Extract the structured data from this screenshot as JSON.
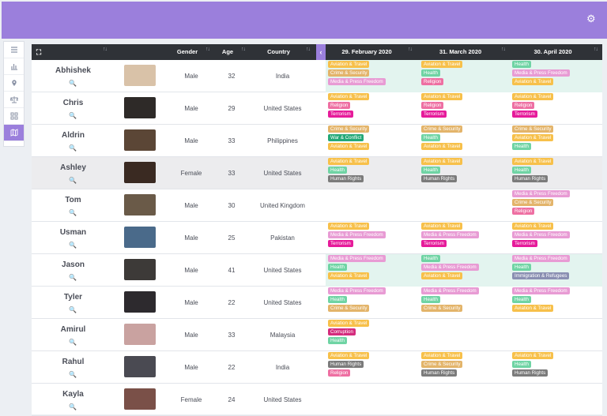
{
  "header": {
    "settings_icon": "gear-icon"
  },
  "sidebar": {
    "items": [
      {
        "icon": "menu-icon"
      },
      {
        "icon": "bar-chart-icon"
      },
      {
        "icon": "map-pin-icon"
      },
      {
        "icon": "scale-icon"
      },
      {
        "icon": "grid-icon"
      },
      {
        "icon": "map-icon",
        "active": true
      }
    ]
  },
  "table": {
    "columns": {
      "gender": "Gender",
      "age": "Age",
      "country": "Country"
    },
    "dates": [
      "29. February 2020",
      "31. March 2020",
      "30. April 2020"
    ],
    "rows": [
      {
        "name": "Abhishek",
        "gender": "Male",
        "age": "32",
        "country": "India",
        "tags": [
          [
            "Aviation & Travel",
            "Crime & Security",
            "Media & Press Freedom"
          ],
          [
            "Aviation & Travel",
            "Health",
            "Religion"
          ],
          [
            "Health",
            "Media & Press Freedom",
            "Aviation & Travel"
          ]
        ]
      },
      {
        "name": "Chris",
        "gender": "Male",
        "age": "29",
        "country": "United States",
        "tags": [
          [
            "Aviation & Travel",
            "Religion",
            "Terrorism"
          ],
          [
            "Aviation & Travel",
            "Religion",
            "Terrorism"
          ],
          [
            "Aviation & Travel",
            "Religion",
            "Terrorism"
          ]
        ]
      },
      {
        "name": "Aldrin",
        "gender": "Male",
        "age": "33",
        "country": "Philippines",
        "tags": [
          [
            "Crime & Security",
            "War & Conflict",
            "Aviation & Travel"
          ],
          [
            "Crime & Security",
            "Health",
            "Aviation & Travel"
          ],
          [
            "Crime & Security",
            "Aviation & Travel",
            "Health"
          ]
        ]
      },
      {
        "name": "Ashley",
        "gender": "Female",
        "age": "33",
        "country": "United States",
        "tags": [
          [
            "Aviation & Travel",
            "Health",
            "Human Rights"
          ],
          [
            "Aviation & Travel",
            "Health",
            "Human Rights"
          ],
          [
            "Aviation & Travel",
            "Health",
            "Human Rights"
          ]
        ]
      },
      {
        "name": "Tom",
        "gender": "Male",
        "age": "30",
        "country": "United Kingdom",
        "tags": [
          [],
          [],
          [
            "Media & Press Freedom",
            "Crime & Security",
            "Religion"
          ]
        ]
      },
      {
        "name": "Usman",
        "gender": "Male",
        "age": "25",
        "country": "Pakistan",
        "tags": [
          [
            "Aviation & Travel",
            "Media & Press Freedom",
            "Terrorism"
          ],
          [
            "Aviation & Travel",
            "Media & Press Freedom",
            "Terrorism"
          ],
          [
            "Aviation & Travel",
            "Media & Press Freedom",
            "Terrorism"
          ]
        ]
      },
      {
        "name": "Jason",
        "gender": "Male",
        "age": "41",
        "country": "United States",
        "tags": [
          [
            "Media & Press Freedom",
            "Health",
            "Aviation & Travel"
          ],
          [
            "Health",
            "Media & Press Freedom",
            "Aviation & Travel"
          ],
          [
            "Media & Press Freedom",
            "Health",
            "Immigration & Refugees"
          ]
        ]
      },
      {
        "name": "Tyler",
        "gender": "Male",
        "age": "22",
        "country": "United States",
        "tags": [
          [
            "Media & Press Freedom",
            "Health",
            "Crime & Security"
          ],
          [
            "Media & Press Freedom",
            "Health",
            "Crime & Security"
          ],
          [
            "Media & Press Freedom",
            "Health",
            "Aviation & Travel"
          ]
        ]
      },
      {
        "name": "Amirul",
        "gender": "Male",
        "age": "33",
        "country": "Malaysia",
        "tags": [
          [
            "Aviation & Travel",
            "Corruption",
            "Health"
          ],
          [],
          []
        ]
      },
      {
        "name": "Rahul",
        "gender": "Male",
        "age": "22",
        "country": "India",
        "tags": [
          [
            "Aviation & Travel",
            "Human Rights",
            "Religion"
          ],
          [
            "Aviation & Travel",
            "Crime & Security",
            "Human Rights"
          ],
          [
            "Aviation & Travel",
            "Health",
            "Human Rights"
          ]
        ]
      },
      {
        "name": "Kayla",
        "gender": "Female",
        "age": "24",
        "country": "United States",
        "tags": [
          [],
          [],
          []
        ]
      }
    ]
  },
  "tag_colors": {
    "Aviation & Travel": "#f7c04a",
    "Crime & Security": "#e3b46a",
    "Media & Press Freedom": "#e89bd4",
    "Religion": "#ee6fa2",
    "Terrorism": "#e61b9a",
    "War & Conflict": "#24a877",
    "Health": "#6fd4a4",
    "Human Rights": "#7b7b7b",
    "Immigration & Refugees": "#8a8fb2",
    "Corruption": "#d42c7d"
  }
}
